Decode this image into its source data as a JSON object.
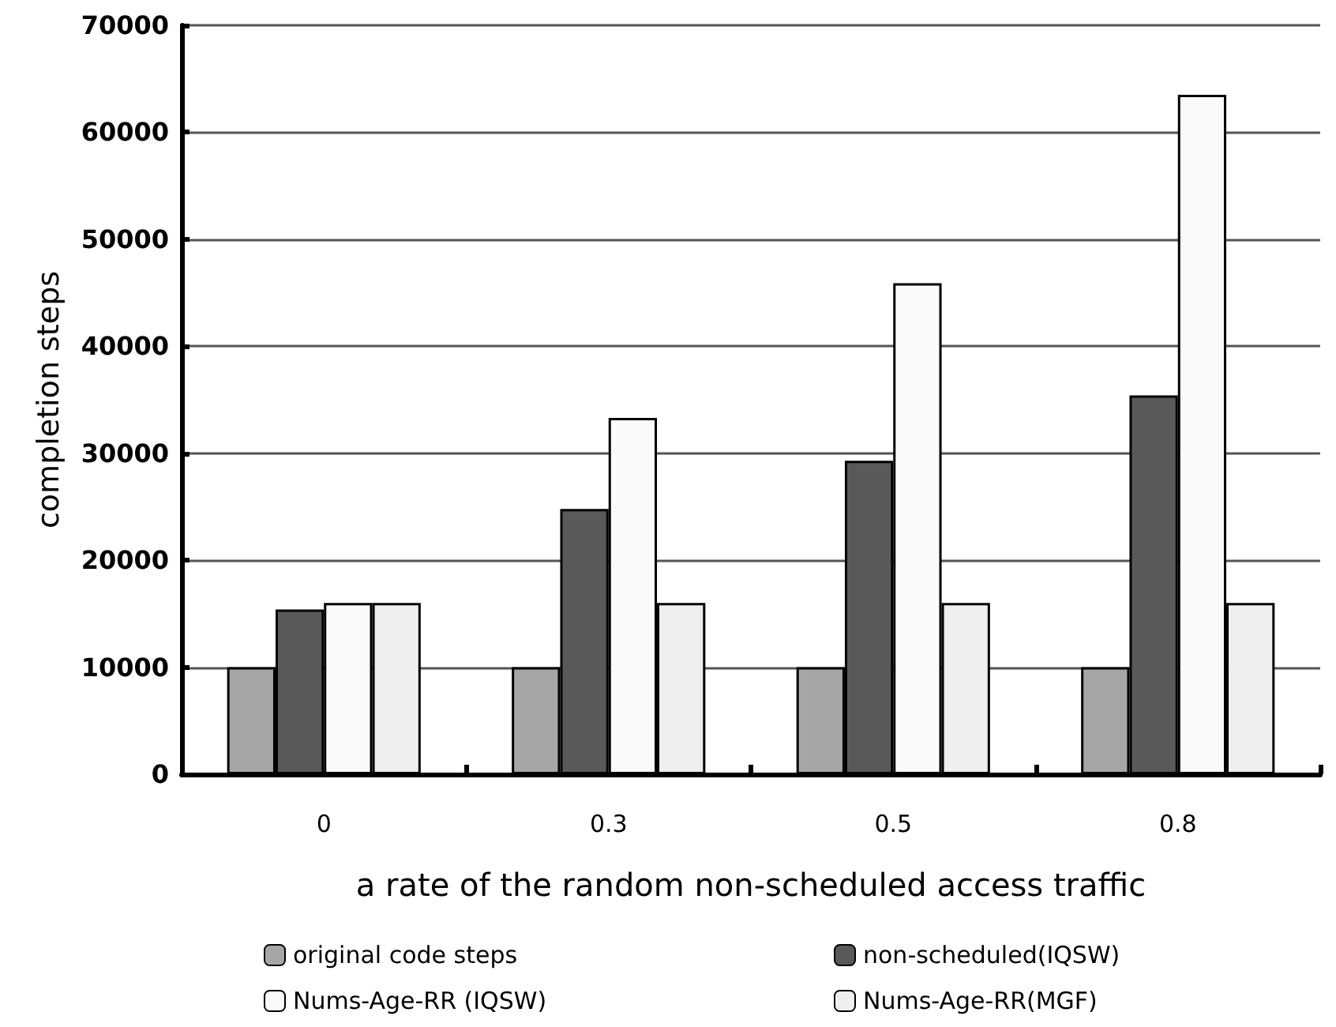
{
  "chart_data": {
    "type": "bar",
    "xlabel": "a rate of the random non-scheduled access traffic",
    "ylabel": "completion steps",
    "categories": [
      "0",
      "0.3",
      "0.5",
      "0.8"
    ],
    "series": [
      {
        "name": "original code steps",
        "color": "#a6a6a6",
        "values": [
          10000,
          10000,
          10000,
          10000
        ]
      },
      {
        "name": "non-scheduled(IQSW)",
        "color": "#595959",
        "values": [
          15400,
          24800,
          29300,
          35400
        ]
      },
      {
        "name": "Nums-Age-RR (IQSW)",
        "color": "#fafafa",
        "values": [
          16000,
          33300,
          45900,
          63500
        ]
      },
      {
        "name": "Nums-Age-RR(MGF)",
        "color": "#efefef",
        "values": [
          16000,
          16000,
          16000,
          16000
        ]
      }
    ],
    "ylim": [
      0,
      70000
    ],
    "yticks": [
      0,
      10000,
      20000,
      30000,
      40000,
      50000,
      60000,
      70000
    ],
    "grid": "y",
    "legend": "bottom"
  }
}
